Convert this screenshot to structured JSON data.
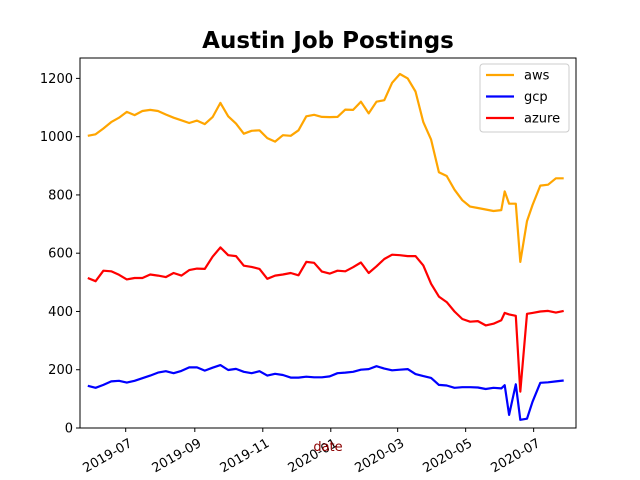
{
  "chart_data": {
    "type": "line",
    "title": "Austin Job Postings",
    "xlabel": "date",
    "ylabel": "",
    "xlabel_color": "#8b0000",
    "ylim": [
      0,
      1270
    ],
    "xlim": [
      "2019-05-21",
      "2020-08-08"
    ],
    "y_ticks": [
      0,
      200,
      400,
      600,
      800,
      1000,
      1200
    ],
    "x_ticks": [
      {
        "date": "2019-07-01",
        "label": "2019-07"
      },
      {
        "date": "2019-09-01",
        "label": "2019-09"
      },
      {
        "date": "2019-11-01",
        "label": "2019-11"
      },
      {
        "date": "2020-01-01",
        "label": "2020-01"
      },
      {
        "date": "2020-03-01",
        "label": "2020-03"
      },
      {
        "date": "2020-05-01",
        "label": "2020-05"
      },
      {
        "date": "2020-07-01",
        "label": "2020-07"
      }
    ],
    "grid": false,
    "legend_position": "top-right",
    "x": [
      "2019-05-28",
      "2019-06-04",
      "2019-06-11",
      "2019-06-18",
      "2019-06-25",
      "2019-07-02",
      "2019-07-09",
      "2019-07-16",
      "2019-07-23",
      "2019-07-30",
      "2019-08-06",
      "2019-08-13",
      "2019-08-20",
      "2019-08-27",
      "2019-09-03",
      "2019-09-10",
      "2019-09-17",
      "2019-09-24",
      "2019-10-01",
      "2019-10-08",
      "2019-10-15",
      "2019-10-22",
      "2019-10-29",
      "2019-11-05",
      "2019-11-12",
      "2019-11-19",
      "2019-11-26",
      "2019-12-03",
      "2019-12-10",
      "2019-12-17",
      "2019-12-24",
      "2019-12-31",
      "2020-01-07",
      "2020-01-14",
      "2020-01-21",
      "2020-01-28",
      "2020-02-04",
      "2020-02-11",
      "2020-02-18",
      "2020-02-25",
      "2020-03-03",
      "2020-03-10",
      "2020-03-17",
      "2020-03-24",
      "2020-03-31",
      "2020-04-07",
      "2020-04-14",
      "2020-04-21",
      "2020-04-28",
      "2020-05-05",
      "2020-05-12",
      "2020-05-19",
      "2020-05-26",
      "2020-06-02",
      "2020-06-05",
      "2020-06-09",
      "2020-06-15",
      "2020-06-19",
      "2020-06-25",
      "2020-06-30",
      "2020-07-07",
      "2020-07-14",
      "2020-07-21",
      "2020-07-28"
    ],
    "series": [
      {
        "name": "aws",
        "color": "#ffa500",
        "values": [
          1003,
          1008,
          1028,
          1050,
          1065,
          1085,
          1074,
          1088,
          1092,
          1088,
          1076,
          1065,
          1056,
          1047,
          1055,
          1043,
          1067,
          1116,
          1070,
          1045,
          1010,
          1020,
          1022,
          995,
          983,
          1005,
          1003,
          1022,
          1070,
          1075,
          1068,
          1067,
          1068,
          1093,
          1092,
          1120,
          1080,
          1120,
          1125,
          1185,
          1215,
          1200,
          1155,
          1050,
          990,
          878,
          865,
          818,
          782,
          760,
          755,
          750,
          745,
          748,
          812,
          770,
          770,
          570,
          710,
          765,
          832,
          835,
          857,
          857
        ]
      },
      {
        "name": "gcp",
        "color": "#0000ff",
        "values": [
          145,
          138,
          148,
          160,
          162,
          156,
          162,
          171,
          180,
          190,
          195,
          188,
          196,
          208,
          208,
          197,
          207,
          216,
          199,
          203,
          193,
          188,
          195,
          180,
          186,
          182,
          173,
          173,
          176,
          174,
          174,
          177,
          188,
          190,
          193,
          200,
          202,
          212,
          204,
          198,
          200,
          202,
          185,
          178,
          172,
          148,
          146,
          138,
          140,
          140,
          139,
          134,
          138,
          136,
          147,
          45,
          150,
          28,
          32,
          90,
          155,
          157,
          160,
          163
        ]
      },
      {
        "name": "azure",
        "color": "#ff0000",
        "values": [
          515,
          504,
          540,
          538,
          526,
          510,
          515,
          515,
          527,
          523,
          518,
          532,
          523,
          542,
          547,
          546,
          588,
          620,
          593,
          590,
          557,
          553,
          546,
          512,
          523,
          527,
          532,
          524,
          570,
          567,
          537,
          530,
          540,
          538,
          552,
          568,
          532,
          555,
          580,
          595,
          593,
          590,
          590,
          558,
          495,
          451,
          432,
          400,
          374,
          365,
          367,
          352,
          358,
          370,
          395,
          390,
          385,
          125,
          392,
          395,
          400,
          402,
          396,
          402
        ]
      }
    ]
  }
}
